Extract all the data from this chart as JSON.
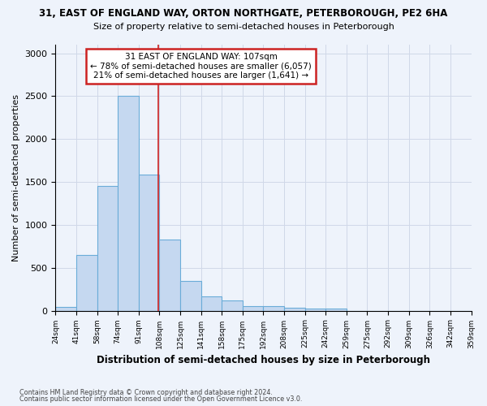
{
  "title_line1": "31, EAST OF ENGLAND WAY, ORTON NORTHGATE, PETERBOROUGH, PE2 6HA",
  "title_line2": "Size of property relative to semi-detached houses in Peterborough",
  "xlabel": "Distribution of semi-detached houses by size in Peterborough",
  "ylabel": "Number of semi-detached properties",
  "annotation_title": "31 EAST OF ENGLAND WAY: 107sqm",
  "annotation_line2": "← 78% of semi-detached houses are smaller (6,057)",
  "annotation_line3": "21% of semi-detached houses are larger (1,641) →",
  "footnote1": "Contains HM Land Registry data © Crown copyright and database right 2024.",
  "footnote2": "Contains public sector information licensed under the Open Government Licence v3.0.",
  "bin_edges": [
    24,
    41,
    58,
    75,
    92,
    109,
    126,
    143,
    160,
    177,
    194,
    211,
    228,
    245,
    262,
    279,
    296,
    313,
    330,
    347,
    364
  ],
  "bar_heights": [
    40,
    650,
    1450,
    2500,
    1590,
    830,
    350,
    165,
    115,
    55,
    55,
    30,
    20,
    20,
    0,
    0,
    0,
    0,
    0,
    0
  ],
  "tick_labels": [
    "24sqm",
    "41sqm",
    "58sqm",
    "74sqm",
    "91sqm",
    "108sqm",
    "125sqm",
    "141sqm",
    "158sqm",
    "175sqm",
    "192sqm",
    "208sqm",
    "225sqm",
    "242sqm",
    "259sqm",
    "275sqm",
    "292sqm",
    "309sqm",
    "326sqm",
    "342sqm",
    "359sqm"
  ],
  "bar_color": "#c5d8f0",
  "bar_edge_color": "#6aacd8",
  "property_line_color": "#cc2222",
  "property_line_x": 108,
  "ylim": [
    0,
    3100
  ],
  "background_color": "#eef3fb",
  "grid_color": "#d0d8e8",
  "annotation_box_edge": "#cc2222",
  "yticks": [
    0,
    500,
    1000,
    1500,
    2000,
    2500,
    3000
  ]
}
